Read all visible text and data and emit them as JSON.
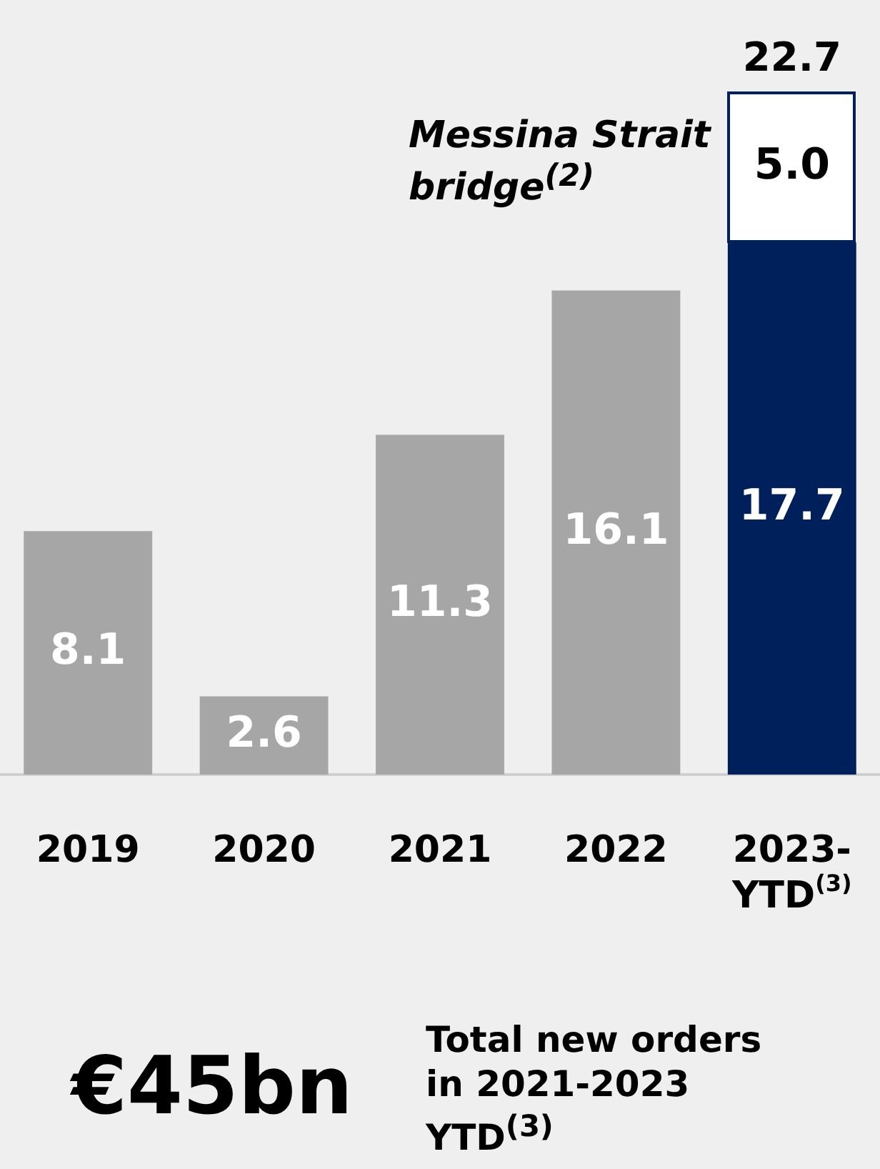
{
  "chart_data": {
    "type": "bar",
    "stacked": true,
    "categories": [
      "2019",
      "2020",
      "2021",
      "2022",
      "2023-YTD$^{(3)}$"
    ],
    "series": [
      {
        "colors": [
          "#a6a6a6",
          "#a6a6a6",
          "#a6a6a6",
          "#a6a6a6",
          "#00205b"
        ],
        "values": [
          8.1,
          2.6,
          11.3,
          16.1,
          17.7
        ],
        "value_labels": [
          "8.1",
          "2.6",
          "11.3",
          "16.1",
          "17.7"
        ]
      },
      {
        "color": "#ffffff",
        "values": [
          null,
          null,
          null,
          null,
          5.0
        ],
        "value_labels": [
          null,
          null,
          null,
          null,
          "5.0"
        ]
      }
    ],
    "totals": [
      null,
      null,
      null,
      null,
      "22.7"
    ],
    "legend": false,
    "grid": false,
    "annotations": [
      "Messina Strait bridge$^{(2)}$",
      "€45bn",
      "Total new orders in 2021-2023 YTD$^{(3)}$"
    ]
  }
}
